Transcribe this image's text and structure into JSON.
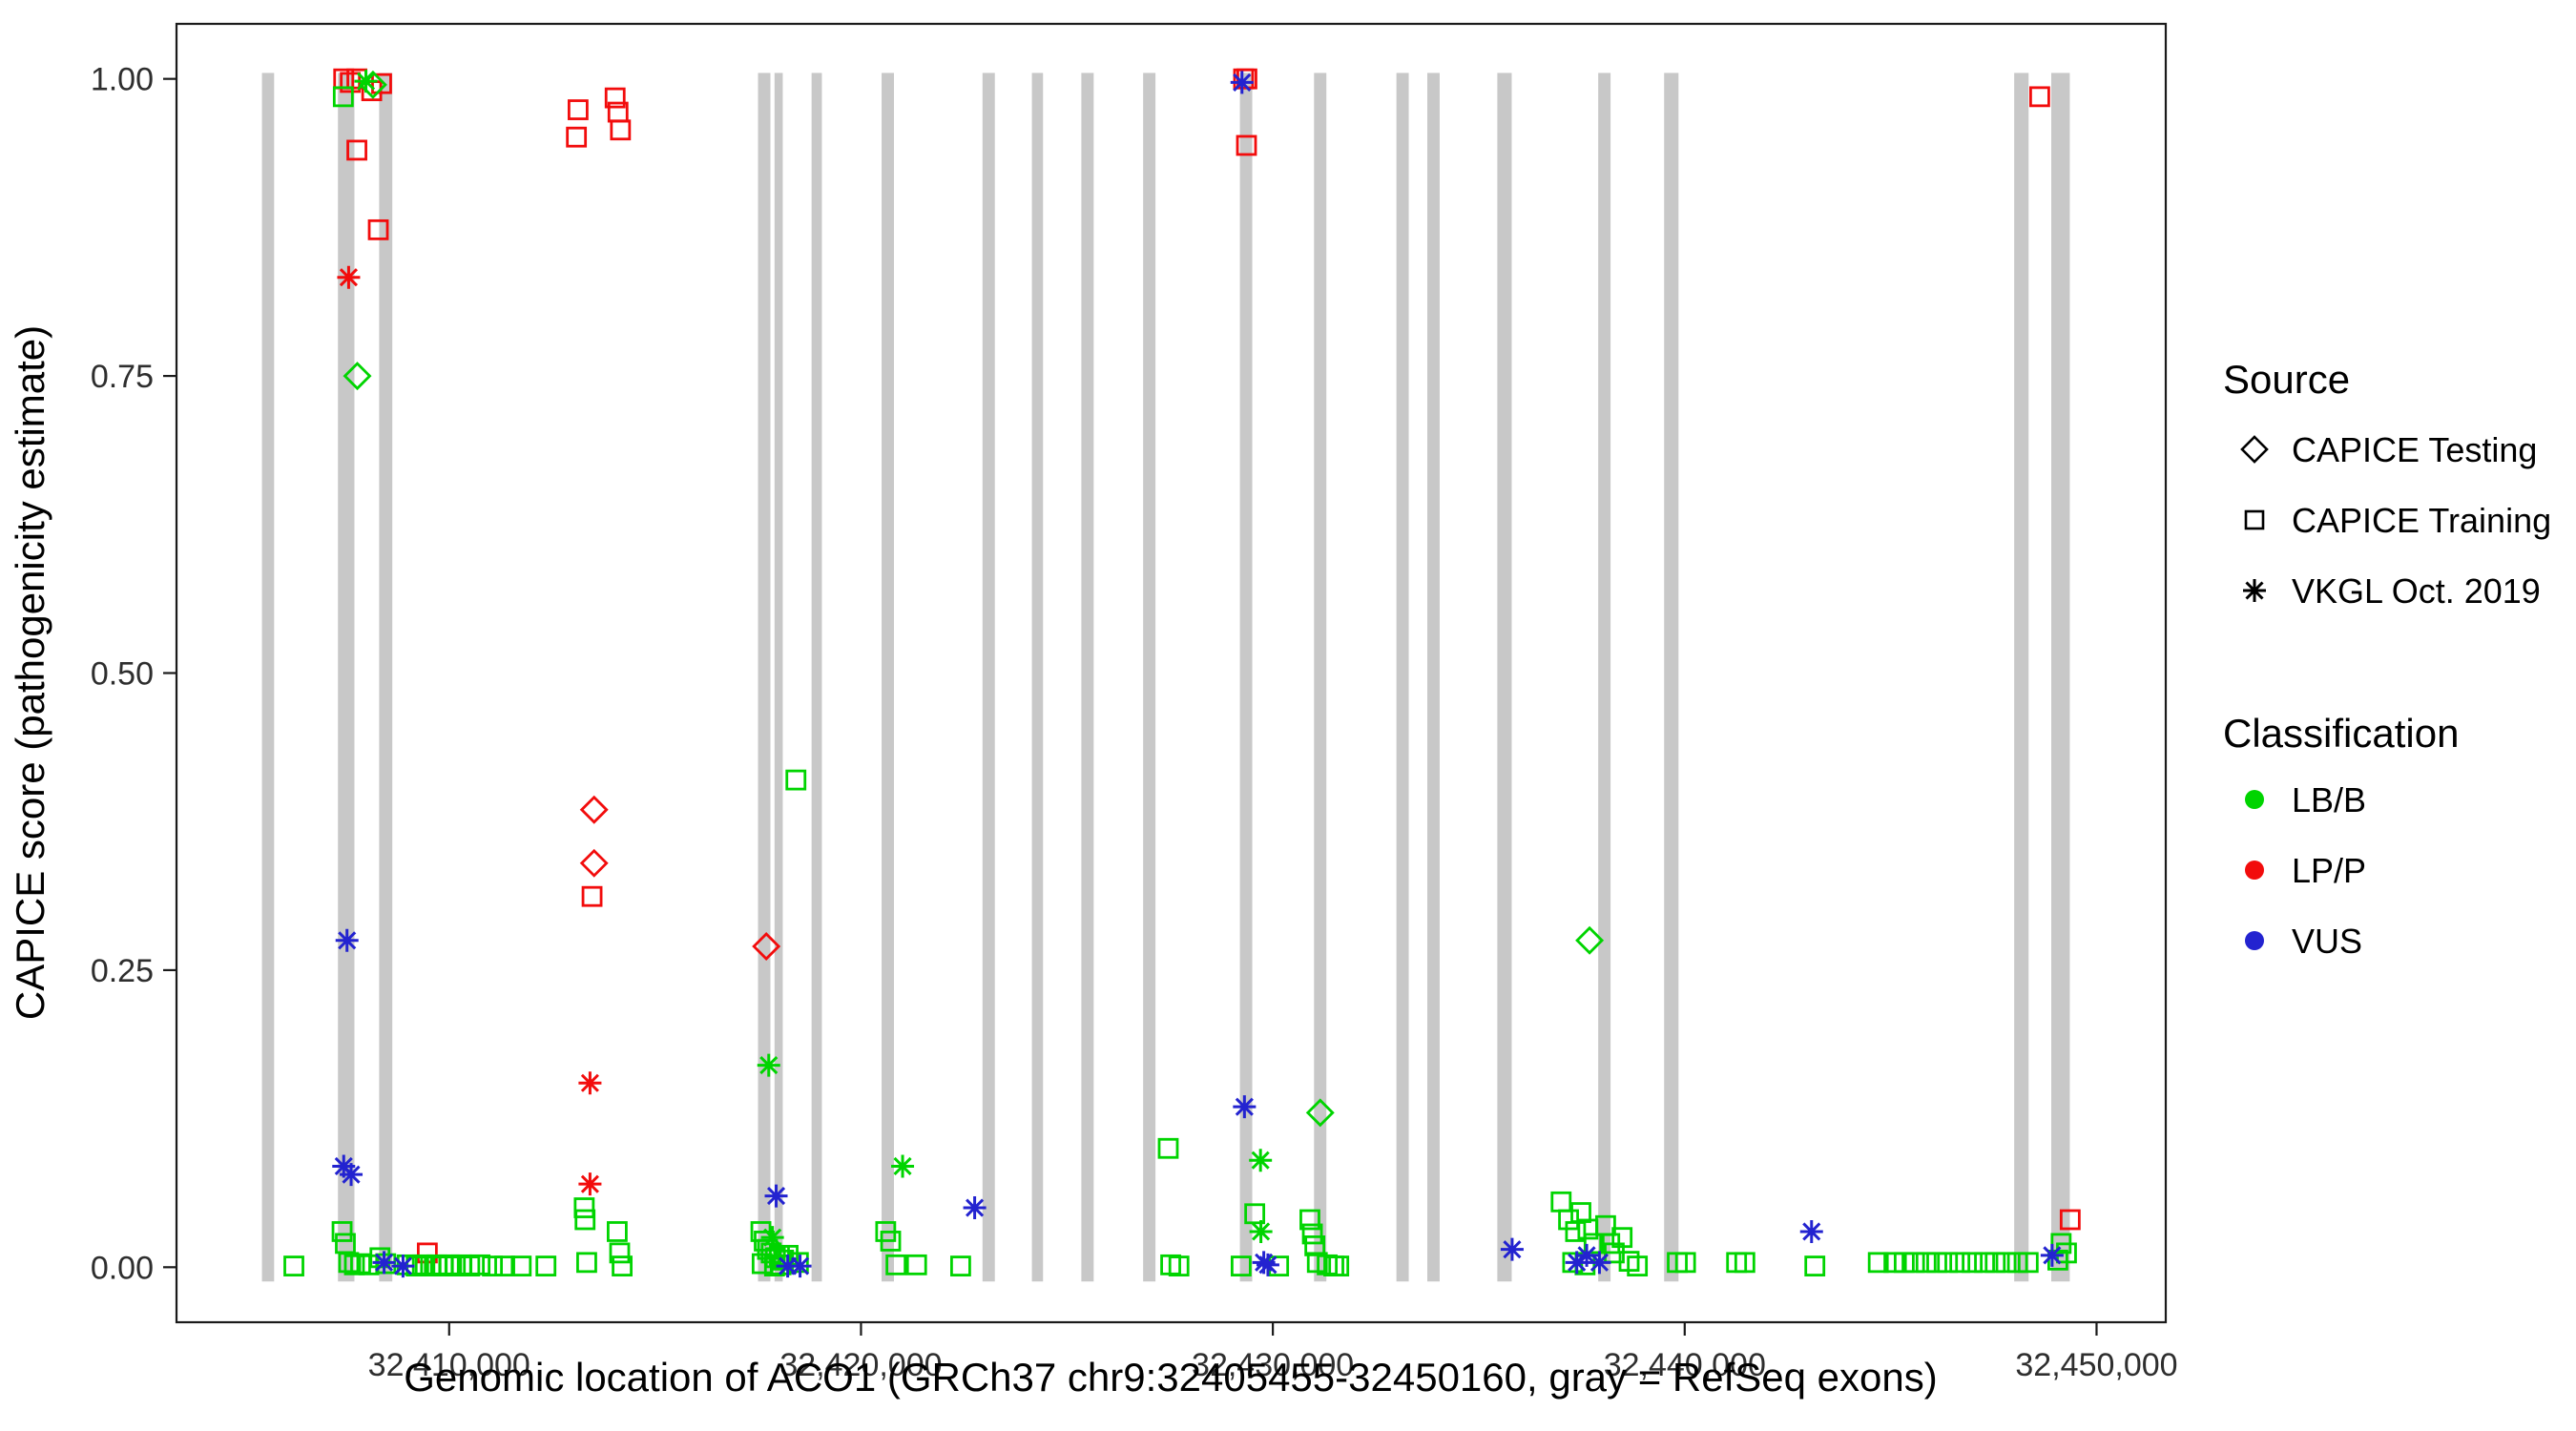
{
  "chart_data": {
    "type": "scatter",
    "title": "",
    "xlabel": "Genomic location of ACO1 (GRCh37 chr9:32405455-32450160, gray = RefSeq exons)",
    "ylabel": "CAPICE score (pathogenicity estimate)",
    "xlim": [
      32403380,
      32451680
    ],
    "ylim": [
      -0.0463,
      1.0463
    ],
    "xticks": {
      "values": [
        32410000,
        32420000,
        32430000,
        32440000,
        32450000
      ],
      "labels": [
        "32,410,000",
        "32,420,000",
        "32,430,000",
        "32,440,000",
        "32,450,000"
      ]
    },
    "yticks": {
      "values": [
        0.0,
        0.25,
        0.5,
        0.75,
        1.0
      ],
      "labels": [
        "0.00",
        "0.25",
        "0.50",
        "0.75",
        "1.00"
      ]
    },
    "exon_color": "#c8c8c8",
    "exons": [
      [
        32405455,
        32405750
      ],
      [
        32407300,
        32407700
      ],
      [
        32408300,
        32408620
      ],
      [
        32417500,
        32417800
      ],
      [
        32417900,
        32418100
      ],
      [
        32418800,
        32419050
      ],
      [
        32420500,
        32420800
      ],
      [
        32422950,
        32423250
      ],
      [
        32424150,
        32424420
      ],
      [
        32425350,
        32425650
      ],
      [
        32426850,
        32427150
      ],
      [
        32429200,
        32429500
      ],
      [
        32431000,
        32431300
      ],
      [
        32433000,
        32433300
      ],
      [
        32433750,
        32434050
      ],
      [
        32435450,
        32435800
      ],
      [
        32437900,
        32438200
      ],
      [
        32439500,
        32439850
      ],
      [
        32448000,
        32448350
      ],
      [
        32448900,
        32449350
      ]
    ],
    "codes": {
      "source": {
        "T": "CAPICE Testing",
        "R": "CAPICE Training",
        "V": "VKGL Oct. 2019"
      },
      "classification": {
        "B": "LB/B",
        "P": "LP/P",
        "U": "VUS"
      }
    },
    "shapes": {
      "T": "diamond",
      "R": "square",
      "V": "asterisk"
    },
    "colors": {
      "B": "#00d400",
      "P": "#f20c0c",
      "U": "#2323d0"
    },
    "point_format": [
      "genomic_x",
      "capice_score",
      "source_code",
      "classification_code"
    ],
    "points": [
      [
        32407440,
        1.0,
        "R",
        "P"
      ],
      [
        32407600,
        0.997,
        "R",
        "P"
      ],
      [
        32407760,
        1.0,
        "R",
        "P"
      ],
      [
        32408120,
        0.99,
        "R",
        "P"
      ],
      [
        32408360,
        0.996,
        "R",
        "P"
      ],
      [
        32407760,
        0.94,
        "R",
        "P"
      ],
      [
        32408280,
        0.873,
        "R",
        "P"
      ],
      [
        32409470,
        0.012,
        "R",
        "P"
      ],
      [
        32413090,
        0.951,
        "R",
        "P"
      ],
      [
        32413130,
        0.974,
        "R",
        "P"
      ],
      [
        32414030,
        0.984,
        "R",
        "P"
      ],
      [
        32414100,
        0.972,
        "R",
        "P"
      ],
      [
        32414160,
        0.957,
        "R",
        "P"
      ],
      [
        32413470,
        0.312,
        "R",
        "P"
      ],
      [
        32429290,
        1.0,
        "R",
        "P"
      ],
      [
        32429370,
        1.0,
        "R",
        "P"
      ],
      [
        32429360,
        0.944,
        "R",
        "P"
      ],
      [
        32448620,
        0.985,
        "R",
        "P"
      ],
      [
        32449360,
        0.04,
        "R",
        "P"
      ],
      [
        32413520,
        0.385,
        "T",
        "P"
      ],
      [
        32413520,
        0.34,
        "T",
        "P"
      ],
      [
        32417700,
        0.27,
        "T",
        "P"
      ],
      [
        32407560,
        0.833,
        "V",
        "P"
      ],
      [
        32413420,
        0.155,
        "V",
        "P"
      ],
      [
        32413420,
        0.07,
        "V",
        "P"
      ],
      [
        32408150,
        0.995,
        "T",
        "B"
      ],
      [
        32407770,
        0.75,
        "T",
        "B"
      ],
      [
        32431150,
        0.13,
        "T",
        "B"
      ],
      [
        32437690,
        0.275,
        "T",
        "B"
      ],
      [
        32407980,
        0.998,
        "V",
        "B"
      ],
      [
        32417760,
        0.17,
        "V",
        "B"
      ],
      [
        32417850,
        0.025,
        "V",
        "B"
      ],
      [
        32421010,
        0.085,
        "V",
        "B"
      ],
      [
        32429700,
        0.09,
        "V",
        "B"
      ],
      [
        32429710,
        0.03,
        "V",
        "B"
      ],
      [
        32407430,
        0.985,
        "R",
        "B"
      ],
      [
        32406230,
        0.001,
        "R",
        "B"
      ],
      [
        32407400,
        0.03,
        "R",
        "B"
      ],
      [
        32407480,
        0.02,
        "R",
        "B"
      ],
      [
        32407560,
        0.004,
        "R",
        "B"
      ],
      [
        32407700,
        0.002,
        "R",
        "B"
      ],
      [
        32407850,
        0.003,
        "R",
        "B"
      ],
      [
        32408050,
        0.002,
        "R",
        "B"
      ],
      [
        32408320,
        0.008,
        "R",
        "B"
      ],
      [
        32408460,
        0.003,
        "R",
        "B"
      ],
      [
        32408980,
        0.002,
        "R",
        "B"
      ],
      [
        32409200,
        0.001,
        "R",
        "B"
      ],
      [
        32409350,
        0.002,
        "R",
        "B"
      ],
      [
        32409550,
        0.001,
        "R",
        "B"
      ],
      [
        32409700,
        0.002,
        "R",
        "B"
      ],
      [
        32409850,
        0.001,
        "R",
        "B"
      ],
      [
        32410000,
        0.002,
        "R",
        "B"
      ],
      [
        32410150,
        0.001,
        "R",
        "B"
      ],
      [
        32410300,
        0.002,
        "R",
        "B"
      ],
      [
        32410500,
        0.001,
        "R",
        "B"
      ],
      [
        32410750,
        0.002,
        "R",
        "B"
      ],
      [
        32411050,
        0.001,
        "R",
        "B"
      ],
      [
        32411350,
        0.001,
        "R",
        "B"
      ],
      [
        32411750,
        0.001,
        "R",
        "B"
      ],
      [
        32412350,
        0.001,
        "R",
        "B"
      ],
      [
        32413280,
        0.05,
        "R",
        "B"
      ],
      [
        32413300,
        0.04,
        "R",
        "B"
      ],
      [
        32413340,
        0.004,
        "R",
        "B"
      ],
      [
        32414080,
        0.03,
        "R",
        "B"
      ],
      [
        32414140,
        0.012,
        "R",
        "B"
      ],
      [
        32414200,
        0.001,
        "R",
        "B"
      ],
      [
        32417570,
        0.03,
        "R",
        "B"
      ],
      [
        32417650,
        0.022,
        "R",
        "B"
      ],
      [
        32417730,
        0.015,
        "R",
        "B"
      ],
      [
        32417820,
        0.012,
        "R",
        "B"
      ],
      [
        32417920,
        0.008,
        "R",
        "B"
      ],
      [
        32418020,
        0.01,
        "R",
        "B"
      ],
      [
        32418120,
        0.006,
        "R",
        "B"
      ],
      [
        32418230,
        0.01,
        "R",
        "B"
      ],
      [
        32417600,
        0.003,
        "R",
        "B"
      ],
      [
        32417900,
        0.001,
        "R",
        "B"
      ],
      [
        32418060,
        0.002,
        "R",
        "B"
      ],
      [
        32418420,
        0.41,
        "R",
        "B"
      ],
      [
        32418480,
        0.004,
        "R",
        "B"
      ],
      [
        32420600,
        0.03,
        "R",
        "B"
      ],
      [
        32420720,
        0.022,
        "R",
        "B"
      ],
      [
        32420850,
        0.002,
        "R",
        "B"
      ],
      [
        32421350,
        0.002,
        "R",
        "B"
      ],
      [
        32422420,
        0.001,
        "R",
        "B"
      ],
      [
        32427460,
        0.1,
        "R",
        "B"
      ],
      [
        32427520,
        0.002,
        "R",
        "B"
      ],
      [
        32427720,
        0.001,
        "R",
        "B"
      ],
      [
        32429230,
        0.001,
        "R",
        "B"
      ],
      [
        32429560,
        0.045,
        "R",
        "B"
      ],
      [
        32430140,
        0.001,
        "R",
        "B"
      ],
      [
        32430900,
        0.04,
        "R",
        "B"
      ],
      [
        32430960,
        0.028,
        "R",
        "B"
      ],
      [
        32431020,
        0.018,
        "R",
        "B"
      ],
      [
        32431080,
        0.004,
        "R",
        "B"
      ],
      [
        32431320,
        0.002,
        "R",
        "B"
      ],
      [
        32431480,
        0.001,
        "R",
        "B"
      ],
      [
        32431600,
        0.001,
        "R",
        "B"
      ],
      [
        32437000,
        0.055,
        "R",
        "B"
      ],
      [
        32437180,
        0.04,
        "R",
        "B"
      ],
      [
        32437350,
        0.03,
        "R",
        "B"
      ],
      [
        32437480,
        0.046,
        "R",
        "B"
      ],
      [
        32437650,
        0.032,
        "R",
        "B"
      ],
      [
        32437800,
        0.02,
        "R",
        "B"
      ],
      [
        32438080,
        0.035,
        "R",
        "B"
      ],
      [
        32438180,
        0.02,
        "R",
        "B"
      ],
      [
        32438290,
        0.012,
        "R",
        "B"
      ],
      [
        32438480,
        0.025,
        "R",
        "B"
      ],
      [
        32438650,
        0.005,
        "R",
        "B"
      ],
      [
        32438850,
        0.001,
        "R",
        "B"
      ],
      [
        32437280,
        0.004,
        "R",
        "B"
      ],
      [
        32437580,
        0.002,
        "R",
        "B"
      ],
      [
        32439820,
        0.004,
        "R",
        "B"
      ],
      [
        32440020,
        0.004,
        "R",
        "B"
      ],
      [
        32441260,
        0.004,
        "R",
        "B"
      ],
      [
        32441460,
        0.004,
        "R",
        "B"
      ],
      [
        32443160,
        0.001,
        "R",
        "B"
      ],
      [
        32444700,
        0.004,
        "R",
        "B"
      ],
      [
        32445080,
        0.004,
        "R",
        "B"
      ],
      [
        32445330,
        0.004,
        "R",
        "B"
      ],
      [
        32445580,
        0.004,
        "R",
        "B"
      ],
      [
        32445860,
        0.004,
        "R",
        "B"
      ],
      [
        32446120,
        0.004,
        "R",
        "B"
      ],
      [
        32446380,
        0.004,
        "R",
        "B"
      ],
      [
        32446680,
        0.004,
        "R",
        "B"
      ],
      [
        32446980,
        0.004,
        "R",
        "B"
      ],
      [
        32447280,
        0.004,
        "R",
        "B"
      ],
      [
        32447540,
        0.004,
        "R",
        "B"
      ],
      [
        32447800,
        0.004,
        "R",
        "B"
      ],
      [
        32448080,
        0.004,
        "R",
        "B"
      ],
      [
        32448340,
        0.004,
        "R",
        "B"
      ],
      [
        32449060,
        0.006,
        "R",
        "B"
      ],
      [
        32449140,
        0.02,
        "R",
        "B"
      ],
      [
        32449270,
        0.012,
        "R",
        "B"
      ],
      [
        32407520,
        0.275,
        "V",
        "U"
      ],
      [
        32407440,
        0.085,
        "V",
        "U"
      ],
      [
        32407620,
        0.078,
        "V",
        "U"
      ],
      [
        32408420,
        0.004,
        "V",
        "U"
      ],
      [
        32408880,
        0.001,
        "V",
        "U"
      ],
      [
        32417940,
        0.06,
        "V",
        "U"
      ],
      [
        32418220,
        0.001,
        "V",
        "U"
      ],
      [
        32418520,
        0.001,
        "V",
        "U"
      ],
      [
        32422760,
        0.05,
        "V",
        "U"
      ],
      [
        32429250,
        0.997,
        "V",
        "U"
      ],
      [
        32429310,
        0.135,
        "V",
        "U"
      ],
      [
        32429780,
        0.004,
        "V",
        "U"
      ],
      [
        32429880,
        0.002,
        "V",
        "U"
      ],
      [
        32435810,
        0.015,
        "V",
        "U"
      ],
      [
        32437380,
        0.004,
        "V",
        "U"
      ],
      [
        32437620,
        0.01,
        "V",
        "U"
      ],
      [
        32437930,
        0.004,
        "V",
        "U"
      ],
      [
        32443080,
        0.03,
        "V",
        "U"
      ],
      [
        32448920,
        0.01,
        "V",
        "U"
      ]
    ],
    "legend": {
      "source": {
        "title": "Source",
        "items": [
          {
            "shape": "diamond",
            "label": "CAPICE Testing"
          },
          {
            "shape": "square",
            "label": "CAPICE Training"
          },
          {
            "shape": "asterisk",
            "label": "VKGL Oct. 2019"
          }
        ]
      },
      "classification": {
        "title": "Classification",
        "items": [
          {
            "label": "LB/B",
            "color": "#00d400"
          },
          {
            "label": "LP/P",
            "color": "#f20c0c"
          },
          {
            "label": "VUS",
            "color": "#2323d0"
          }
        ]
      }
    }
  }
}
